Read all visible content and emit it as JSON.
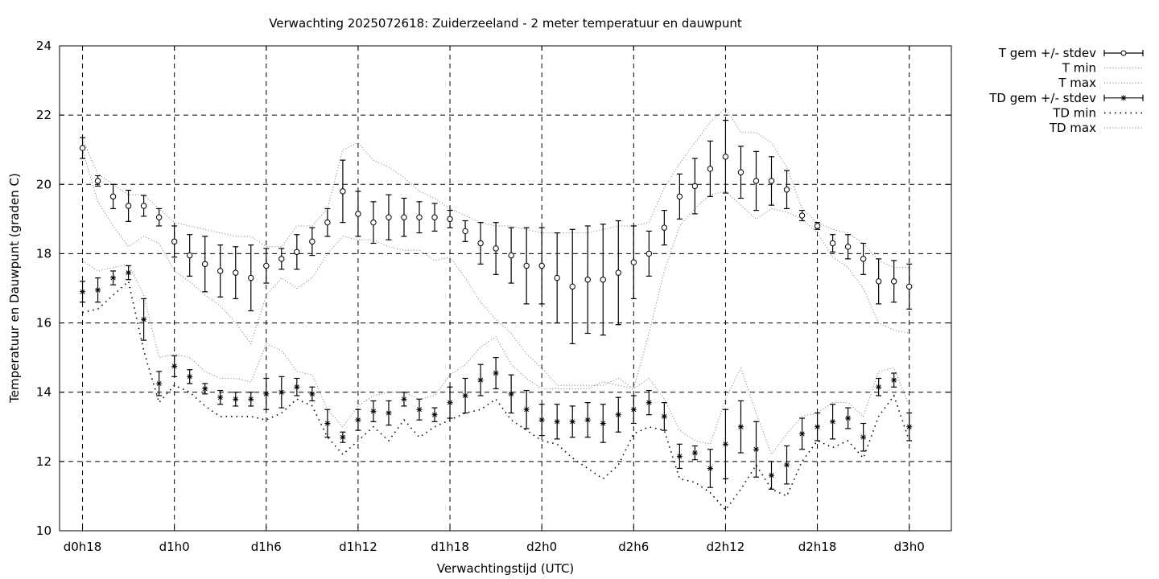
{
  "chart_data": {
    "type": "line",
    "title": "Verwachting 2025072618: Zuiderzeeland - 2 meter temperatuur en dauwpunt",
    "xlabel": "Verwachtingstijd (UTC)",
    "ylabel": "Temperatuur en Dauwpunt (graden C)",
    "x_range_hours": [
      -1.5,
      34.5
    ],
    "ylim": [
      10,
      24
    ],
    "y_ticks": [
      10,
      12,
      14,
      16,
      18,
      20,
      22,
      24
    ],
    "x_ticks": [
      {
        "hour": 0,
        "label": "d0h18"
      },
      {
        "hour": 6,
        "label": "d1h0"
      },
      {
        "hour": 12,
        "label": "d1h6"
      },
      {
        "hour": 18,
        "label": "d1h12"
      },
      {
        "hour": 24,
        "label": "d1h18"
      },
      {
        "hour": 30,
        "label": "d2h0"
      },
      {
        "hour": 36,
        "label": "d2h6"
      },
      {
        "hour": 42,
        "label": "d2h12"
      },
      {
        "hour": 48,
        "label": "d2h18"
      },
      {
        "hour": 54,
        "label": "d3h0"
      }
    ],
    "grid": true,
    "legend_position": "top-right-outside",
    "hours": [
      0,
      1,
      2,
      3,
      4,
      5,
      6,
      7,
      8,
      9,
      10,
      11,
      12,
      13,
      14,
      15,
      16,
      17,
      18,
      19,
      20,
      21,
      22,
      23,
      24,
      25,
      26,
      27,
      28,
      29,
      30,
      31,
      32,
      33,
      34,
      35,
      36,
      37,
      38,
      39,
      40,
      41,
      42,
      43,
      44,
      45,
      46,
      47,
      48,
      49,
      50,
      51,
      52,
      53,
      54
    ],
    "series": [
      {
        "name": "T gem +/- stdev",
        "style": "errorbar-circle",
        "mean": [
          21.05,
          20.1,
          19.65,
          19.38,
          19.38,
          19.05,
          18.35,
          17.95,
          17.7,
          17.5,
          17.45,
          17.3,
          17.65,
          17.85,
          18.05,
          18.35,
          18.9,
          19.8,
          19.15,
          18.9,
          19.05,
          19.05,
          19.05,
          19.05,
          19.0,
          18.65,
          18.3,
          18.15,
          17.95,
          17.65,
          17.65,
          17.3,
          17.05,
          17.25,
          17.25,
          17.45,
          17.75,
          18.0,
          18.75,
          19.65,
          19.95,
          20.45,
          20.8,
          20.35,
          20.1,
          20.1,
          19.85,
          19.1,
          18.8,
          18.3,
          18.2,
          17.85,
          17.2,
          17.2,
          17.05
        ],
        "stdev": [
          0.3,
          0.15,
          0.35,
          0.45,
          0.3,
          0.25,
          0.45,
          0.6,
          0.8,
          0.75,
          0.75,
          0.95,
          0.5,
          0.3,
          0.5,
          0.4,
          0.4,
          0.9,
          0.65,
          0.6,
          0.65,
          0.55,
          0.45,
          0.4,
          0.25,
          0.3,
          0.6,
          0.75,
          0.8,
          1.1,
          1.1,
          1.3,
          1.65,
          1.55,
          1.6,
          1.5,
          1.05,
          0.65,
          0.5,
          0.65,
          0.8,
          0.8,
          1.05,
          0.75,
          0.85,
          0.7,
          0.55,
          0.15,
          0.1,
          0.25,
          0.35,
          0.45,
          0.65,
          0.6,
          0.65
        ]
      },
      {
        "name": "T min",
        "style": "dotted",
        "values": [
          21.0,
          19.5,
          18.8,
          18.2,
          18.5,
          18.3,
          17.5,
          17.2,
          16.8,
          16.5,
          16.0,
          15.4,
          16.8,
          17.3,
          17.0,
          17.3,
          18.0,
          18.5,
          18.4,
          18.4,
          18.2,
          18.1,
          18.1,
          17.8,
          17.9,
          17.3,
          16.6,
          16.1,
          15.7,
          15.1,
          14.7,
          14.2,
          14.2,
          14.2,
          14.2,
          14.4,
          14.1,
          15.7,
          17.5,
          18.8,
          19.3,
          19.7,
          19.8,
          19.4,
          19.0,
          19.3,
          19.2,
          19.0,
          18.6,
          17.9,
          17.6,
          17.0,
          16.0,
          15.8,
          15.7
        ]
      },
      {
        "name": "T max",
        "style": "dotted",
        "values": [
          21.3,
          20.3,
          20.0,
          19.7,
          19.7,
          19.3,
          18.9,
          18.8,
          18.7,
          18.6,
          18.5,
          18.5,
          18.2,
          18.2,
          18.8,
          18.8,
          19.3,
          21.0,
          21.2,
          20.7,
          20.5,
          20.2,
          19.8,
          19.6,
          19.3,
          19.1,
          18.9,
          18.8,
          18.8,
          18.7,
          18.6,
          18.6,
          18.6,
          18.6,
          18.7,
          18.8,
          18.8,
          18.9,
          19.9,
          20.6,
          21.2,
          21.8,
          22.2,
          21.5,
          21.5,
          21.2,
          20.5,
          19.3,
          18.9,
          18.7,
          18.6,
          18.3,
          17.8,
          17.6,
          17.6
        ]
      },
      {
        "name": "TD gem +/- stdev",
        "style": "errorbar-star",
        "mean": [
          16.9,
          16.95,
          17.3,
          17.45,
          16.1,
          14.25,
          14.75,
          14.45,
          14.1,
          13.85,
          13.8,
          13.8,
          13.95,
          14.0,
          14.15,
          13.95,
          13.1,
          12.7,
          13.2,
          13.45,
          13.4,
          13.8,
          13.5,
          13.35,
          13.7,
          13.9,
          14.35,
          14.55,
          13.95,
          13.5,
          13.2,
          13.15,
          13.15,
          13.2,
          13.1,
          13.35,
          13.5,
          13.7,
          13.3,
          12.15,
          12.25,
          11.8,
          12.5,
          13.0,
          12.35,
          11.6,
          11.9,
          12.8,
          13.0,
          13.15,
          13.25,
          12.7,
          14.15,
          14.35,
          13.0
        ],
        "stdev": [
          0.3,
          0.35,
          0.2,
          0.2,
          0.6,
          0.35,
          0.3,
          0.2,
          0.15,
          0.2,
          0.2,
          0.2,
          0.45,
          0.45,
          0.25,
          0.2,
          0.4,
          0.15,
          0.3,
          0.3,
          0.35,
          0.2,
          0.3,
          0.2,
          0.45,
          0.5,
          0.45,
          0.45,
          0.55,
          0.55,
          0.45,
          0.5,
          0.45,
          0.5,
          0.55,
          0.5,
          0.4,
          0.35,
          0.4,
          0.35,
          0.2,
          0.55,
          1.0,
          0.75,
          0.8,
          0.4,
          0.55,
          0.45,
          0.4,
          0.5,
          0.3,
          0.4,
          0.25,
          0.2,
          0.4
        ]
      },
      {
        "name": "TD min",
        "style": "sparse-dotted",
        "values": [
          16.3,
          16.4,
          16.8,
          17.2,
          15.2,
          13.7,
          14.2,
          14.0,
          13.6,
          13.3,
          13.3,
          13.3,
          13.2,
          13.4,
          13.8,
          13.6,
          12.7,
          12.2,
          12.6,
          13.0,
          12.6,
          13.2,
          12.7,
          13.0,
          13.2,
          13.4,
          13.5,
          13.8,
          13.2,
          12.9,
          12.6,
          12.5,
          12.1,
          11.8,
          11.5,
          11.9,
          12.8,
          13.0,
          12.9,
          11.5,
          11.4,
          11.1,
          10.6,
          11.2,
          11.9,
          11.2,
          11.0,
          12.0,
          12.6,
          12.4,
          12.6,
          12.1,
          13.3,
          13.9,
          12.6
        ]
      },
      {
        "name": "TD max",
        "style": "dotted",
        "values": [
          17.8,
          17.5,
          17.6,
          17.7,
          16.8,
          15.0,
          15.1,
          15.0,
          14.6,
          14.4,
          14.4,
          14.3,
          15.4,
          15.2,
          14.6,
          14.5,
          13.5,
          13.0,
          13.6,
          13.9,
          14.0,
          14.0,
          13.8,
          13.9,
          14.5,
          14.8,
          15.3,
          15.6,
          14.8,
          14.4,
          14.1,
          14.1,
          14.1,
          14.1,
          14.3,
          14.2,
          14.1,
          14.4,
          13.8,
          12.9,
          12.6,
          12.5,
          13.8,
          14.7,
          13.4,
          12.2,
          12.8,
          13.3,
          13.4,
          13.7,
          13.7,
          13.3,
          14.6,
          14.7,
          13.6
        ]
      }
    ]
  }
}
